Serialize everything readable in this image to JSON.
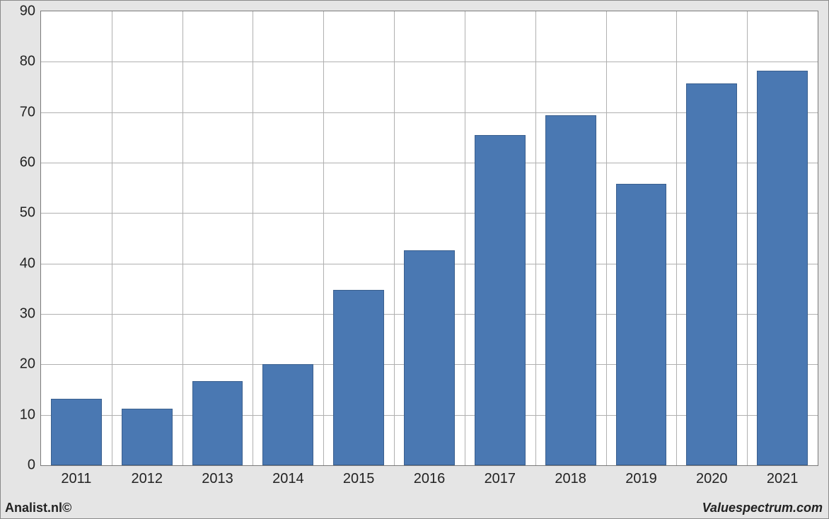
{
  "chart": {
    "type": "bar",
    "categories": [
      "2011",
      "2012",
      "2013",
      "2014",
      "2015",
      "2016",
      "2017",
      "2018",
      "2019",
      "2020",
      "2021"
    ],
    "values": [
      13.2,
      11.2,
      16.7,
      20.0,
      34.8,
      42.6,
      65.4,
      69.4,
      55.8,
      75.7,
      78.2
    ],
    "ylim": [
      0,
      90
    ],
    "ytick_step": 10,
    "bar_color": "#4a78b2",
    "bar_border_color": "#3a5f8e",
    "background_color": "#ffffff",
    "frame_background": "#e5e5e5",
    "grid_color": "#b0b0b0",
    "axis_color": "#7a7a7a",
    "label_color": "#222222",
    "label_fontsize": 20,
    "bar_width_ratio": 0.72
  },
  "footer": {
    "left": "Analist.nl©",
    "right": "Valuespectrum.com"
  }
}
